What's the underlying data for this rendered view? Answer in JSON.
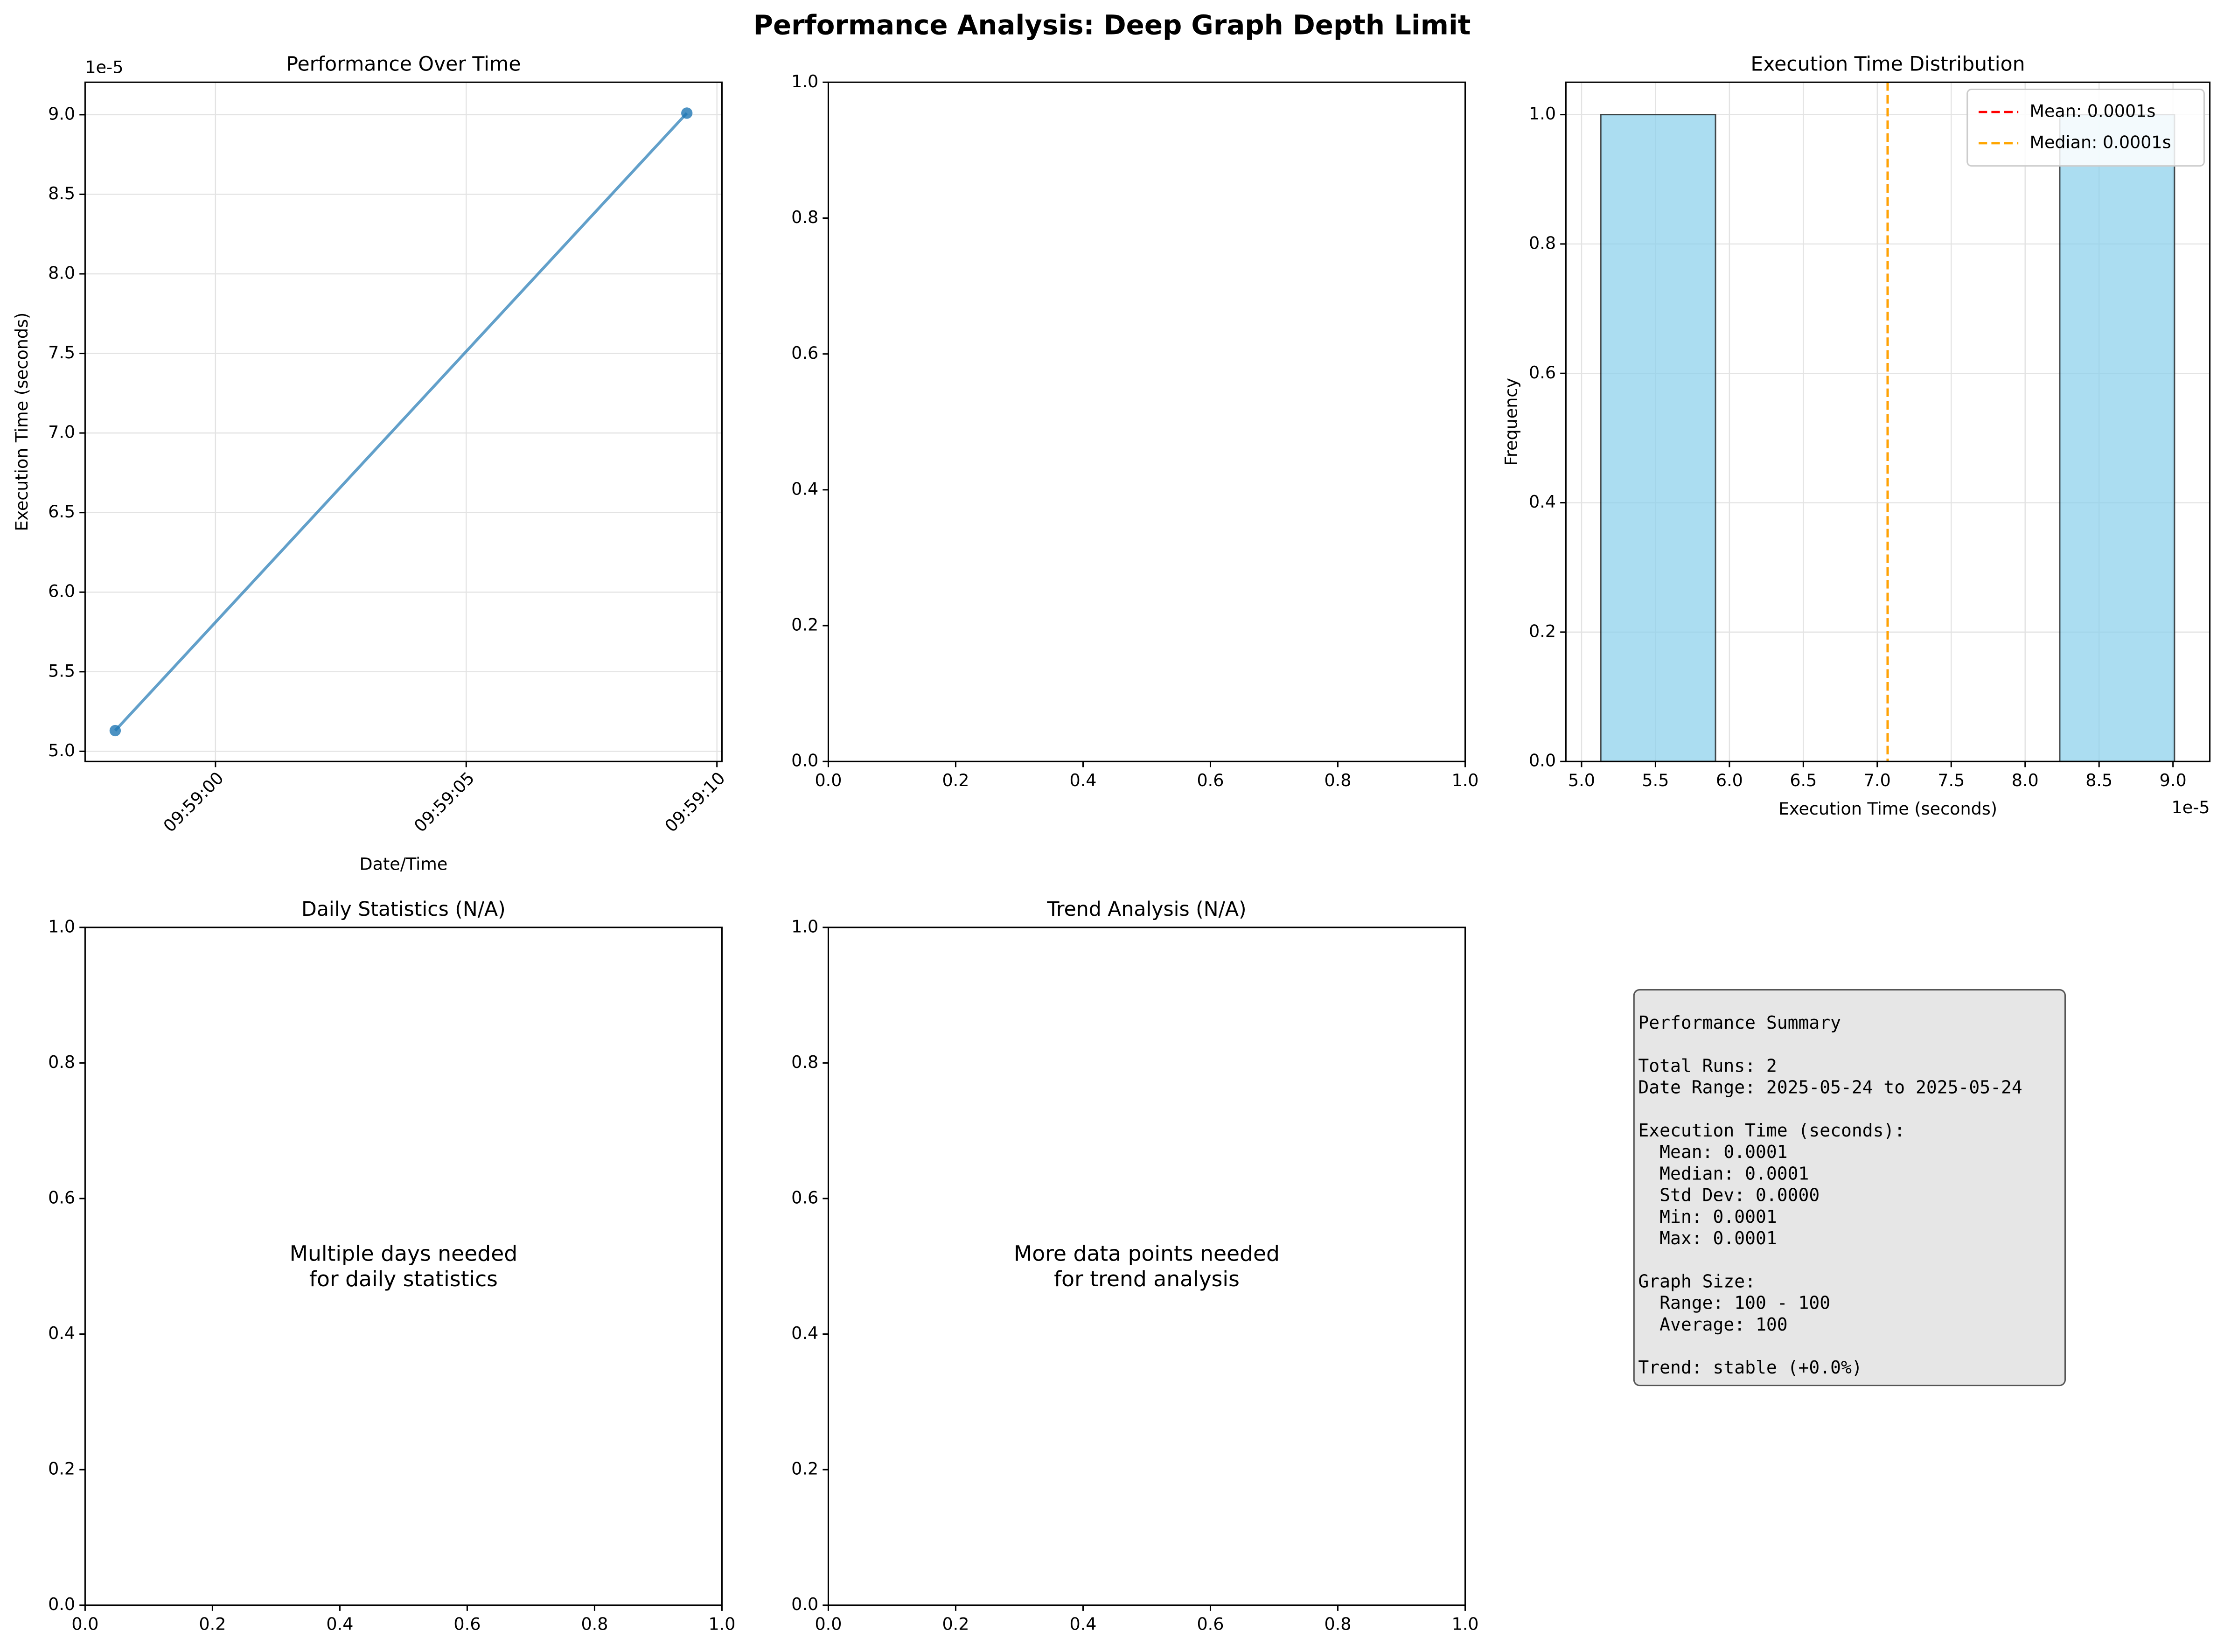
{
  "title": "Performance Analysis: Deep Graph Depth Limit",
  "chart_data": [
    {
      "type": "line",
      "title": "Performance Over Time",
      "x_label": "Date/Time",
      "y_label": "Execution Time (seconds)",
      "x": [
        "09:58:58.0",
        "09:59:09.4"
      ],
      "values": [
        5.13e-05,
        9.01e-05
      ],
      "color": "#1f77b4",
      "xlim": [
        "09:58:57.4",
        "09:59:10.1"
      ],
      "xticks": [
        "09:59:00",
        "09:59:05",
        "09:59:10"
      ],
      "xtick_rotation": 45,
      "ylim": [
        4.936e-05,
        9.204e-05
      ],
      "yticks": [
        {
          "value": 5e-05,
          "label": "5.0"
        },
        {
          "value": 5.5e-05,
          "label": "5.5"
        },
        {
          "value": 6e-05,
          "label": "6.0"
        },
        {
          "value": 6.5e-05,
          "label": "6.5"
        },
        {
          "value": 7e-05,
          "label": "7.0"
        },
        {
          "value": 7.5e-05,
          "label": "7.5"
        },
        {
          "value": 8e-05,
          "label": "8.0"
        },
        {
          "value": 8.5e-05,
          "label": "8.5"
        },
        {
          "value": 9e-05,
          "label": "9.0"
        }
      ],
      "y_offset_label": "1e-5",
      "grid": true
    },
    {
      "type": "blank",
      "xlim": [
        0,
        1
      ],
      "ylim": [
        0,
        1
      ],
      "xticks": [
        {
          "value": 0,
          "label": "0.0"
        },
        {
          "value": 0.2,
          "label": "0.2"
        },
        {
          "value": 0.4,
          "label": "0.4"
        },
        {
          "value": 0.6,
          "label": "0.6"
        },
        {
          "value": 0.8,
          "label": "0.8"
        },
        {
          "value": 1,
          "label": "1.0"
        }
      ],
      "yticks": [
        {
          "value": 0,
          "label": "0.0"
        },
        {
          "value": 0.2,
          "label": "0.2"
        },
        {
          "value": 0.4,
          "label": "0.4"
        },
        {
          "value": 0.6,
          "label": "0.6"
        },
        {
          "value": 0.8,
          "label": "0.8"
        },
        {
          "value": 1,
          "label": "1.0"
        }
      ],
      "grid": false
    },
    {
      "type": "histogram",
      "title": "Execution Time Distribution",
      "x_label": "Execution Time (seconds)",
      "y_label": "Frequency",
      "bins": [
        5.13e-05,
        5.906e-05,
        6.682e-05,
        7.458e-05,
        8.234e-05,
        9.01e-05
      ],
      "counts": [
        1,
        0,
        0,
        0,
        1
      ],
      "color": "#87ceeb",
      "ref_lines": [
        {
          "name": "Mean: 0.0001s",
          "value": 7.07e-05,
          "color": "#ff0000"
        },
        {
          "name": "Median: 0.0001s",
          "value": 7.07e-05,
          "color": "#ffa500"
        }
      ],
      "legend": "upper-right",
      "xlim": [
        4.894e-05,
        9.249e-05
      ],
      "xticks": [
        {
          "value": 5e-05,
          "label": "5.0"
        },
        {
          "value": 5.5e-05,
          "label": "5.5"
        },
        {
          "value": 6e-05,
          "label": "6.0"
        },
        {
          "value": 6.5e-05,
          "label": "6.5"
        },
        {
          "value": 7e-05,
          "label": "7.0"
        },
        {
          "value": 7.5e-05,
          "label": "7.5"
        },
        {
          "value": 8e-05,
          "label": "8.0"
        },
        {
          "value": 8.5e-05,
          "label": "8.5"
        },
        {
          "value": 9e-05,
          "label": "9.0"
        }
      ],
      "x_offset_label": "1e-5",
      "ylim": [
        0,
        1.05
      ],
      "yticks": [
        {
          "value": 0,
          "label": "0.0"
        },
        {
          "value": 0.2,
          "label": "0.2"
        },
        {
          "value": 0.4,
          "label": "0.4"
        },
        {
          "value": 0.6,
          "label": "0.6"
        },
        {
          "value": 0.8,
          "label": "0.8"
        },
        {
          "value": 1,
          "label": "1.0"
        }
      ],
      "grid": true
    },
    {
      "type": "blank",
      "title": "Daily Statistics (N/A)",
      "annotation": [
        "Multiple days needed",
        "for daily statistics"
      ],
      "xlim": [
        0,
        1
      ],
      "ylim": [
        0,
        1
      ],
      "xticks": [
        {
          "value": 0,
          "label": "0.0"
        },
        {
          "value": 0.2,
          "label": "0.2"
        },
        {
          "value": 0.4,
          "label": "0.4"
        },
        {
          "value": 0.6,
          "label": "0.6"
        },
        {
          "value": 0.8,
          "label": "0.8"
        },
        {
          "value": 1,
          "label": "1.0"
        }
      ],
      "yticks": [
        {
          "value": 0,
          "label": "0.0"
        },
        {
          "value": 0.2,
          "label": "0.2"
        },
        {
          "value": 0.4,
          "label": "0.4"
        },
        {
          "value": 0.6,
          "label": "0.6"
        },
        {
          "value": 0.8,
          "label": "0.8"
        },
        {
          "value": 1,
          "label": "1.0"
        }
      ],
      "grid": false
    },
    {
      "type": "blank",
      "title": "Trend Analysis (N/A)",
      "annotation": [
        "More data points needed",
        "for trend analysis"
      ],
      "xlim": [
        0,
        1
      ],
      "ylim": [
        0,
        1
      ],
      "xticks": [
        {
          "value": 0,
          "label": "0.0"
        },
        {
          "value": 0.2,
          "label": "0.2"
        },
        {
          "value": 0.4,
          "label": "0.4"
        },
        {
          "value": 0.6,
          "label": "0.6"
        },
        {
          "value": 0.8,
          "label": "0.8"
        },
        {
          "value": 1,
          "label": "1.0"
        }
      ],
      "yticks": [
        {
          "value": 0,
          "label": "0.0"
        },
        {
          "value": 0.2,
          "label": "0.2"
        },
        {
          "value": 0.4,
          "label": "0.4"
        },
        {
          "value": 0.6,
          "label": "0.6"
        },
        {
          "value": 0.8,
          "label": "0.8"
        },
        {
          "value": 1,
          "label": "1.0"
        }
      ],
      "grid": false
    },
    {
      "type": "text",
      "sections": [
        [
          "Performance Summary"
        ],
        [
          "Total Runs: 2",
          "Date Range: 2025-05-24 to 2025-05-24"
        ],
        [
          "Execution Time (seconds):",
          "  Mean: 0.0001",
          "  Median: 0.0001",
          "  Std Dev: 0.0000",
          "  Min: 0.0001",
          "  Max: 0.0001"
        ],
        [
          "Graph Size:",
          "  Range: 100 - 100",
          "  Average: 100"
        ],
        [
          "Trend: stable (+0.0%)"
        ]
      ]
    }
  ]
}
